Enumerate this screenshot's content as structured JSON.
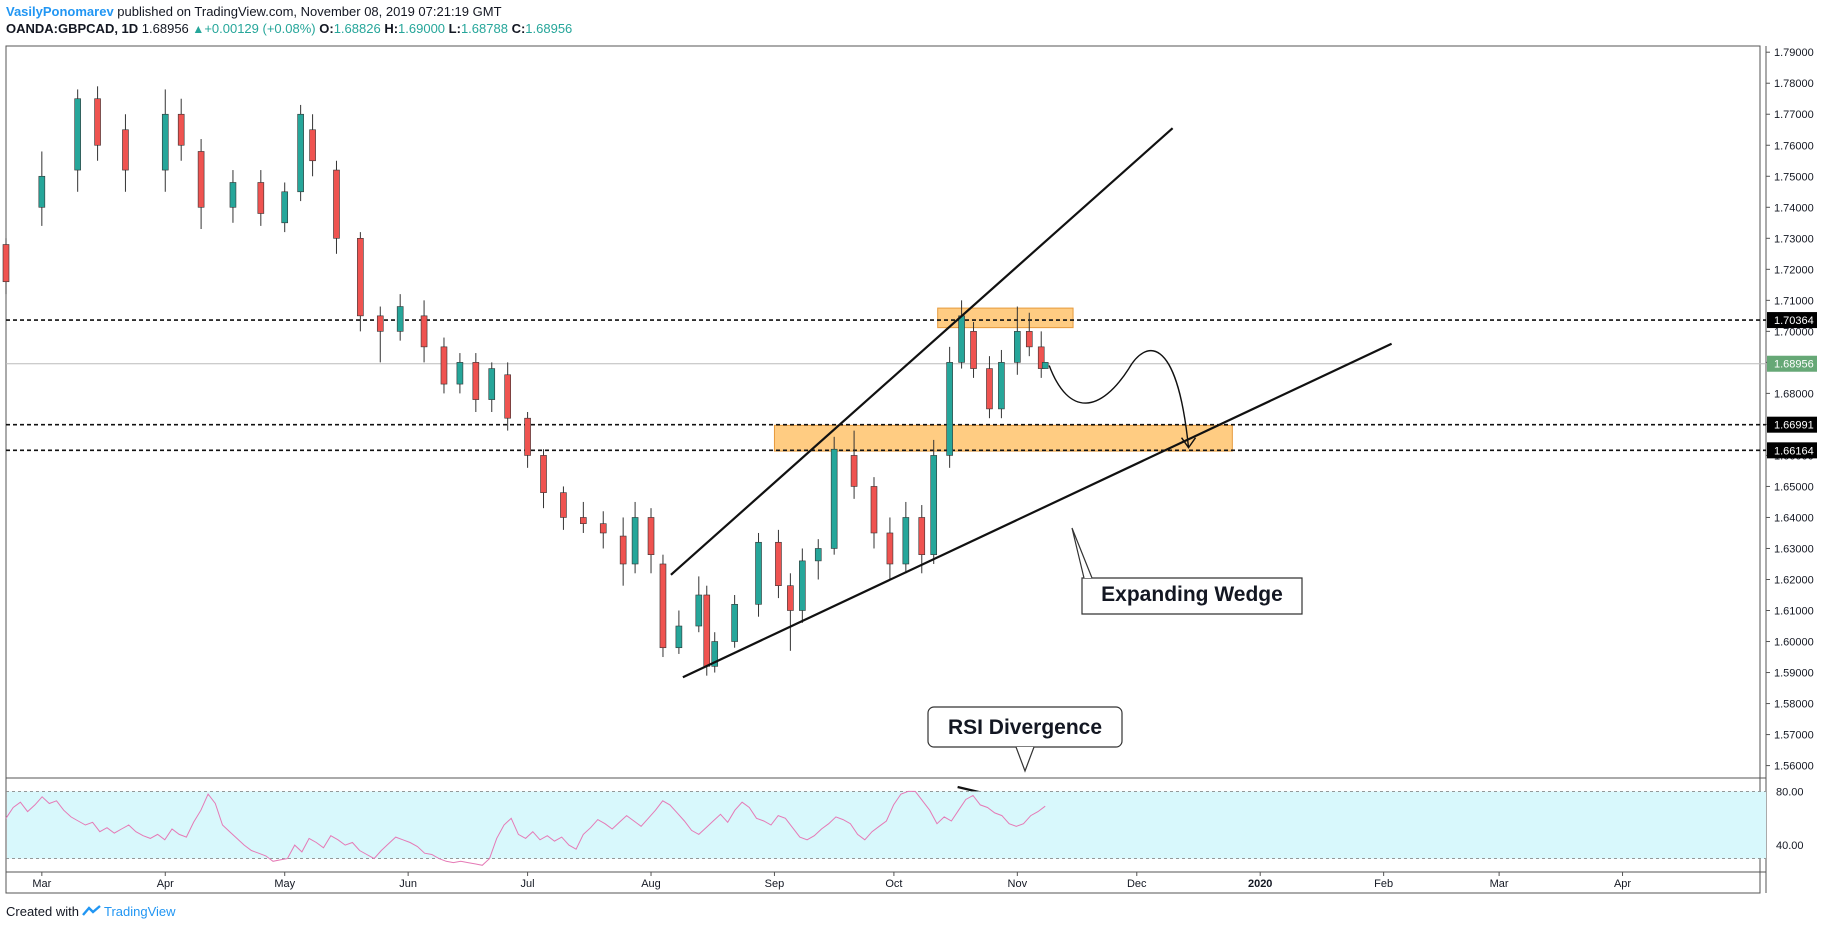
{
  "header": {
    "author": "VasilyPonomarev",
    "published_text": "published on TradingView.com, November 08, 2019 07:21:19 GMT",
    "symbol": "OANDA:GBPCAD, 1D",
    "last": "1.68956",
    "change": "+0.00129 (+0.08%)",
    "o_label": "O:",
    "o_value": "1.68826",
    "h_label": "H:",
    "h_value": "1.69000",
    "l_label": "L:",
    "l_value": "1.68788",
    "c_label": "C:",
    "c_value": "1.68956"
  },
  "footer": {
    "created_with": "Created with",
    "brand": "TradingView"
  },
  "colors": {
    "up": "#26a69a",
    "down": "#ef5350",
    "zone": "#ffb74d",
    "rsi_line": "#e57ab6",
    "rsi_band": "#d8f8fc",
    "text": "#131722",
    "accent": "#2196f3"
  },
  "chart_data": {
    "type": "candlestick",
    "price_axis": {
      "ylim": [
        1.556,
        1.792
      ],
      "ticks": [
        "1.79000",
        "1.78000",
        "1.77000",
        "1.76000",
        "1.75000",
        "1.74000",
        "1.73000",
        "1.72000",
        "1.71000",
        "1.70000",
        "1.69000",
        "1.68000",
        "1.67000",
        "1.66000",
        "1.65000",
        "1.64000",
        "1.63000",
        "1.62000",
        "1.61000",
        "1.60000",
        "1.59000",
        "1.58000",
        "1.57000",
        "1.56000"
      ]
    },
    "time_axis": {
      "labels": [
        "Mar",
        "Apr",
        "May",
        "Jun",
        "Jul",
        "Aug",
        "Sep",
        "Oct",
        "Nov",
        "Dec",
        "2020",
        "Feb",
        "Mar",
        "Apr"
      ],
      "start": "2019-02-20",
      "end": "2020-04-30"
    },
    "candles": [
      [
        "2019-02-20",
        1.728,
        1.716,
        1.73,
        1.712
      ],
      [
        "2019-03-01",
        1.74,
        1.75,
        1.758,
        1.734
      ],
      [
        "2019-03-10",
        1.752,
        1.775,
        1.778,
        1.745
      ],
      [
        "2019-03-15",
        1.775,
        1.76,
        1.779,
        1.755
      ],
      [
        "2019-03-22",
        1.765,
        1.752,
        1.77,
        1.745
      ],
      [
        "2019-04-01",
        1.752,
        1.77,
        1.778,
        1.745
      ],
      [
        "2019-04-05",
        1.77,
        1.76,
        1.775,
        1.755
      ],
      [
        "2019-04-10",
        1.758,
        1.74,
        1.762,
        1.733
      ],
      [
        "2019-04-18",
        1.74,
        1.748,
        1.752,
        1.735
      ],
      [
        "2019-04-25",
        1.748,
        1.738,
        1.752,
        1.734
      ],
      [
        "2019-05-01",
        1.735,
        1.745,
        1.748,
        1.732
      ],
      [
        "2019-05-05",
        1.745,
        1.77,
        1.773,
        1.742
      ],
      [
        "2019-05-08",
        1.765,
        1.755,
        1.77,
        1.75
      ],
      [
        "2019-05-14",
        1.752,
        1.73,
        1.755,
        1.725
      ],
      [
        "2019-05-20",
        1.73,
        1.705,
        1.732,
        1.7
      ],
      [
        "2019-05-25",
        1.705,
        1.7,
        1.708,
        1.69
      ],
      [
        "2019-05-30",
        1.7,
        1.708,
        1.712,
        1.697
      ],
      [
        "2019-06-05",
        1.705,
        1.695,
        1.71,
        1.69
      ],
      [
        "2019-06-10",
        1.695,
        1.683,
        1.698,
        1.68
      ],
      [
        "2019-06-14",
        1.683,
        1.69,
        1.693,
        1.68
      ],
      [
        "2019-06-18",
        1.69,
        1.678,
        1.693,
        1.674
      ],
      [
        "2019-06-22",
        1.678,
        1.688,
        1.69,
        1.674
      ],
      [
        "2019-06-26",
        1.686,
        1.672,
        1.69,
        1.668
      ],
      [
        "2019-07-01",
        1.672,
        1.66,
        1.674,
        1.656
      ],
      [
        "2019-07-05",
        1.66,
        1.648,
        1.662,
        1.643
      ],
      [
        "2019-07-10",
        1.648,
        1.64,
        1.65,
        1.636
      ],
      [
        "2019-07-15",
        1.64,
        1.638,
        1.645,
        1.635
      ],
      [
        "2019-07-20",
        1.638,
        1.635,
        1.642,
        1.63
      ],
      [
        "2019-07-25",
        1.634,
        1.625,
        1.64,
        1.618
      ],
      [
        "2019-07-28",
        1.625,
        1.64,
        1.645,
        1.622
      ],
      [
        "2019-08-01",
        1.64,
        1.628,
        1.643,
        1.622
      ],
      [
        "2019-08-04",
        1.625,
        1.598,
        1.628,
        1.595
      ],
      [
        "2019-08-08",
        1.598,
        1.605,
        1.61,
        1.596
      ],
      [
        "2019-08-13",
        1.605,
        1.615,
        1.621,
        1.603
      ],
      [
        "2019-08-15",
        1.615,
        1.592,
        1.618,
        1.589
      ],
      [
        "2019-08-17",
        1.592,
        1.6,
        1.603,
        1.59
      ],
      [
        "2019-08-22",
        1.6,
        1.612,
        1.615,
        1.598
      ],
      [
        "2019-08-28",
        1.612,
        1.632,
        1.635,
        1.608
      ],
      [
        "2019-09-02",
        1.632,
        1.618,
        1.636,
        1.614
      ],
      [
        "2019-09-05",
        1.618,
        1.61,
        1.622,
        1.597
      ],
      [
        "2019-09-08",
        1.61,
        1.626,
        1.63,
        1.606
      ],
      [
        "2019-09-12",
        1.626,
        1.63,
        1.633,
        1.62
      ],
      [
        "2019-09-16",
        1.63,
        1.662,
        1.666,
        1.628
      ],
      [
        "2019-09-21",
        1.66,
        1.65,
        1.668,
        1.646
      ],
      [
        "2019-09-26",
        1.65,
        1.635,
        1.653,
        1.63
      ],
      [
        "2019-09-30",
        1.635,
        1.625,
        1.64,
        1.62
      ],
      [
        "2019-10-04",
        1.625,
        1.64,
        1.645,
        1.622
      ],
      [
        "2019-10-08",
        1.64,
        1.628,
        1.644,
        1.622
      ],
      [
        "2019-10-11",
        1.628,
        1.66,
        1.665,
        1.625
      ],
      [
        "2019-10-15",
        1.66,
        1.69,
        1.695,
        1.656
      ],
      [
        "2019-10-18",
        1.69,
        1.705,
        1.71,
        1.688
      ],
      [
        "2019-10-21",
        1.7,
        1.688,
        1.703,
        1.685
      ],
      [
        "2019-10-25",
        1.688,
        1.675,
        1.692,
        1.672
      ],
      [
        "2019-10-28",
        1.675,
        1.69,
        1.694,
        1.672
      ],
      [
        "2019-11-01",
        1.69,
        1.7,
        1.708,
        1.686
      ],
      [
        "2019-11-04",
        1.7,
        1.695,
        1.706,
        1.692
      ],
      [
        "2019-11-07",
        1.695,
        1.688,
        1.7,
        1.685
      ],
      [
        "2019-11-08",
        1.688,
        1.69,
        1.69,
        1.688
      ]
    ],
    "price_lines": [
      1.70364,
      1.66991,
      1.66164
    ],
    "price_labels": [
      "1.70364",
      "1.66991",
      "1.66164"
    ],
    "last_price_label": "1.68956",
    "zones": [
      {
        "from": "2019-10-12",
        "to": "2019-11-15",
        "low": 1.7012,
        "high": 1.7075
      },
      {
        "from": "2019-09-01",
        "to": "2019-12-25",
        "low": 1.6614,
        "high": 1.6697
      }
    ],
    "trendlines": [
      {
        "p1": [
          "2019-08-06",
          1.6215
        ],
        "p2": [
          "2019-12-10",
          1.7655
        ]
      },
      {
        "p1": [
          "2019-08-09",
          1.5885
        ],
        "p2": [
          "2020-02-03",
          1.696
        ]
      },
      {
        "p1": [
          "2019-10-17",
          1.6645
        ],
        "p2": [
          "2019-11-03",
          1.6605
        ],
        "pane": "rsi"
      }
    ],
    "annotations": [
      "Expanding Wedge",
      "RSI Divergence"
    ],
    "rsi": {
      "ylim": [
        20,
        90
      ],
      "levels": [
        80,
        30
      ],
      "tick_labels": [
        "80.00",
        "40.00"
      ],
      "values": [
        60,
        68,
        72,
        65,
        70,
        76,
        71,
        73,
        66,
        61,
        58,
        55,
        57,
        50,
        53,
        49,
        52,
        55,
        50,
        47,
        45,
        48,
        44,
        52,
        48,
        46,
        57,
        66,
        78,
        71,
        55,
        50,
        45,
        40,
        36,
        34,
        32,
        28,
        29,
        30,
        40,
        35,
        45,
        42,
        38,
        47,
        44,
        40,
        42,
        36,
        33,
        30,
        36,
        41,
        46,
        44,
        42,
        39,
        34,
        33,
        30,
        28,
        27,
        28,
        27,
        26,
        25,
        30,
        45,
        55,
        60,
        48,
        45,
        50,
        44,
        47,
        43,
        46,
        40,
        37,
        48,
        53,
        59,
        56,
        52,
        57,
        62,
        58,
        54,
        60,
        66,
        73,
        70,
        64,
        58,
        51,
        48,
        53,
        58,
        63,
        57,
        66,
        72,
        68,
        60,
        58,
        55,
        62,
        60,
        53,
        46,
        44,
        47,
        52,
        56,
        61,
        59,
        56,
        48,
        44,
        50,
        54,
        58,
        70,
        78,
        80,
        80,
        73,
        66,
        56,
        61,
        58,
        66,
        74,
        77,
        70,
        68,
        64,
        62,
        56,
        54,
        56,
        62,
        65,
        69
      ]
    }
  }
}
